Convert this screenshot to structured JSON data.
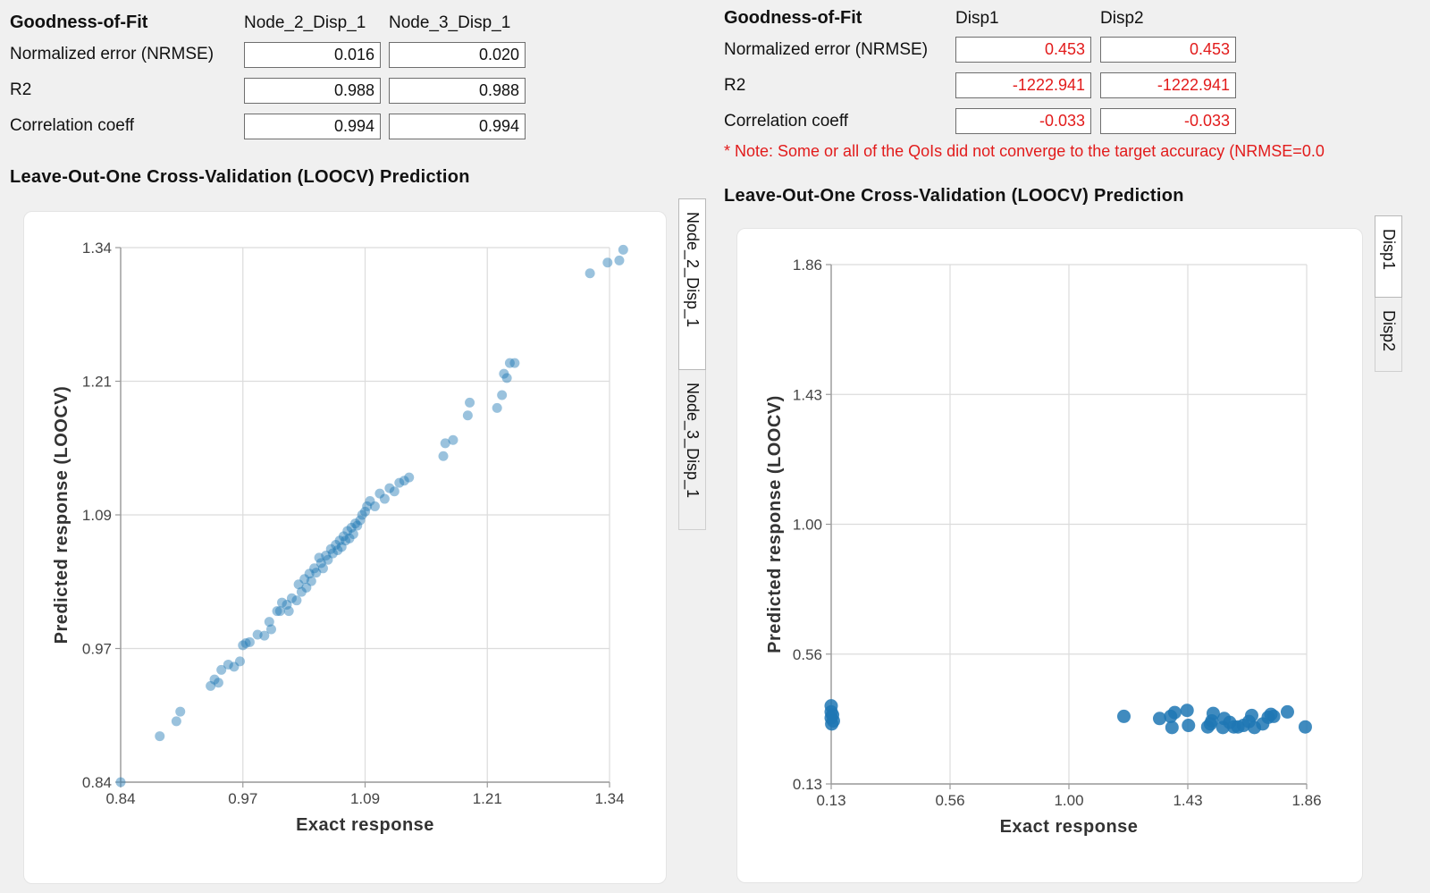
{
  "left": {
    "gof": {
      "title": "Goodness-of-Fit",
      "columns": [
        "Node_2_Disp_1",
        "Node_3_Disp_1"
      ],
      "rows": [
        {
          "label": "Normalized error (NRMSE)",
          "values": [
            "0.016",
            "0.020"
          ]
        },
        {
          "label": "R2",
          "values": [
            "0.988",
            "0.988"
          ]
        },
        {
          "label": "Correlation coeff",
          "values": [
            "0.994",
            "0.994"
          ]
        }
      ]
    },
    "section_title": "Leave-Out-One Cross-Validation (LOOCV) Prediction",
    "tabs": [
      {
        "label": "Node_2_Disp_1",
        "active": true
      },
      {
        "label": "Node_3_Disp_1",
        "active": false
      }
    ]
  },
  "right": {
    "gof": {
      "title": "Goodness-of-Fit",
      "columns": [
        "Disp1",
        "Disp2"
      ],
      "rows": [
        {
          "label": "Normalized error (NRMSE)",
          "values": [
            "0.453",
            "0.453"
          ]
        },
        {
          "label": "R2",
          "values": [
            "-1222.941",
            "-1222.941"
          ]
        },
        {
          "label": "Correlation coeff",
          "values": [
            "-0.033",
            "-0.033"
          ]
        }
      ],
      "warning_color": "#e21b1b"
    },
    "note": "* Note: Some or all of the QoIs did not converge to the target accuracy (NRMSE=0.0",
    "section_title": "Leave-Out-One Cross-Validation (LOOCV) Prediction",
    "tabs": [
      {
        "label": "Disp1",
        "active": true
      },
      {
        "label": "Disp2",
        "active": false
      }
    ]
  },
  "chart_data": [
    {
      "type": "scatter",
      "xlabel": "Exact response",
      "ylabel": "Predicted response (LOOCV)",
      "xlim": [
        0.84,
        1.34
      ],
      "ylim": [
        0.84,
        1.34
      ],
      "xticks": [
        "0.84",
        "0.97",
        "1.09",
        "1.21",
        "1.34"
      ],
      "yticks": [
        "0.84",
        "0.97",
        "1.09",
        "1.21",
        "1.34"
      ],
      "grid": true,
      "point_color": "#1f77b4",
      "points": [
        [
          0.84,
          0.84
        ],
        [
          0.88,
          0.883
        ],
        [
          0.897,
          0.897
        ],
        [
          0.901,
          0.906
        ],
        [
          0.932,
          0.93
        ],
        [
          0.936,
          0.936
        ],
        [
          0.94,
          0.933
        ],
        [
          0.943,
          0.945
        ],
        [
          0.95,
          0.95
        ],
        [
          0.956,
          0.948
        ],
        [
          0.962,
          0.953
        ],
        [
          0.965,
          0.968
        ],
        [
          0.968,
          0.97
        ],
        [
          0.972,
          0.971
        ],
        [
          0.98,
          0.978
        ],
        [
          0.987,
          0.977
        ],
        [
          0.992,
          0.99
        ],
        [
          0.994,
          0.983
        ],
        [
          1.0,
          1.0
        ],
        [
          1.003,
          1.0
        ],
        [
          1.005,
          1.008
        ],
        [
          1.01,
          1.006
        ],
        [
          1.012,
          1.0
        ],
        [
          1.015,
          1.012
        ],
        [
          1.02,
          1.01
        ],
        [
          1.022,
          1.025
        ],
        [
          1.025,
          1.018
        ],
        [
          1.028,
          1.03
        ],
        [
          1.03,
          1.022
        ],
        [
          1.033,
          1.035
        ],
        [
          1.035,
          1.028
        ],
        [
          1.038,
          1.04
        ],
        [
          1.04,
          1.036
        ],
        [
          1.043,
          1.05
        ],
        [
          1.045,
          1.045
        ],
        [
          1.047,
          1.04
        ],
        [
          1.05,
          1.052
        ],
        [
          1.052,
          1.048
        ],
        [
          1.055,
          1.058
        ],
        [
          1.057,
          1.054
        ],
        [
          1.06,
          1.062
        ],
        [
          1.062,
          1.057
        ],
        [
          1.064,
          1.066
        ],
        [
          1.066,
          1.06
        ],
        [
          1.068,
          1.07
        ],
        [
          1.07,
          1.066
        ],
        [
          1.072,
          1.075
        ],
        [
          1.074,
          1.068
        ],
        [
          1.076,
          1.078
        ],
        [
          1.078,
          1.072
        ],
        [
          1.08,
          1.082
        ],
        [
          1.082,
          1.08
        ],
        [
          1.085,
          1.085
        ],
        [
          1.087,
          1.09
        ],
        [
          1.09,
          1.093
        ],
        [
          1.092,
          1.098
        ],
        [
          1.095,
          1.103
        ],
        [
          1.1,
          1.098
        ],
        [
          1.105,
          1.11
        ],
        [
          1.11,
          1.105
        ],
        [
          1.115,
          1.115
        ],
        [
          1.12,
          1.112
        ],
        [
          1.125,
          1.12
        ],
        [
          1.13,
          1.122
        ],
        [
          1.135,
          1.125
        ],
        [
          1.17,
          1.145
        ],
        [
          1.172,
          1.157
        ],
        [
          1.18,
          1.16
        ],
        [
          1.195,
          1.183
        ],
        [
          1.197,
          1.195
        ],
        [
          1.225,
          1.19
        ],
        [
          1.23,
          1.202
        ],
        [
          1.232,
          1.222
        ],
        [
          1.235,
          1.218
        ],
        [
          1.238,
          1.232
        ],
        [
          1.243,
          1.232
        ],
        [
          1.32,
          1.316
        ],
        [
          1.338,
          1.326
        ],
        [
          1.35,
          1.328
        ],
        [
          1.354,
          1.338
        ]
      ]
    },
    {
      "type": "scatter",
      "xlabel": "Exact response",
      "ylabel": "Predicted response (LOOCV)",
      "xlim": [
        0.13,
        1.86
      ],
      "ylim": [
        0.13,
        1.86
      ],
      "xticks": [
        "0.13",
        "0.56",
        "1.00",
        "1.43",
        "1.86"
      ],
      "yticks": [
        "0.13",
        "0.56",
        "1.00",
        "1.43",
        "1.86"
      ],
      "grid": true,
      "point_color": "#1f77b4",
      "points": [
        [
          0.13,
          0.39
        ],
        [
          0.13,
          0.37
        ],
        [
          0.13,
          0.35
        ],
        [
          0.132,
          0.33
        ],
        [
          0.135,
          0.36
        ],
        [
          0.138,
          0.34
        ],
        [
          1.195,
          0.355
        ],
        [
          1.325,
          0.348
        ],
        [
          1.365,
          0.355
        ],
        [
          1.37,
          0.318
        ],
        [
          1.38,
          0.368
        ],
        [
          1.425,
          0.375
        ],
        [
          1.43,
          0.325
        ],
        [
          1.5,
          0.32
        ],
        [
          1.51,
          0.33
        ],
        [
          1.515,
          0.34
        ],
        [
          1.52,
          0.365
        ],
        [
          1.555,
          0.318
        ],
        [
          1.56,
          0.348
        ],
        [
          1.58,
          0.335
        ],
        [
          1.595,
          0.32
        ],
        [
          1.61,
          0.32
        ],
        [
          1.63,
          0.325
        ],
        [
          1.65,
          0.338
        ],
        [
          1.66,
          0.358
        ],
        [
          1.67,
          0.318
        ],
        [
          1.7,
          0.33
        ],
        [
          1.72,
          0.352
        ],
        [
          1.73,
          0.362
        ],
        [
          1.74,
          0.355
        ],
        [
          1.79,
          0.37
        ],
        [
          1.855,
          0.32
        ]
      ]
    }
  ]
}
